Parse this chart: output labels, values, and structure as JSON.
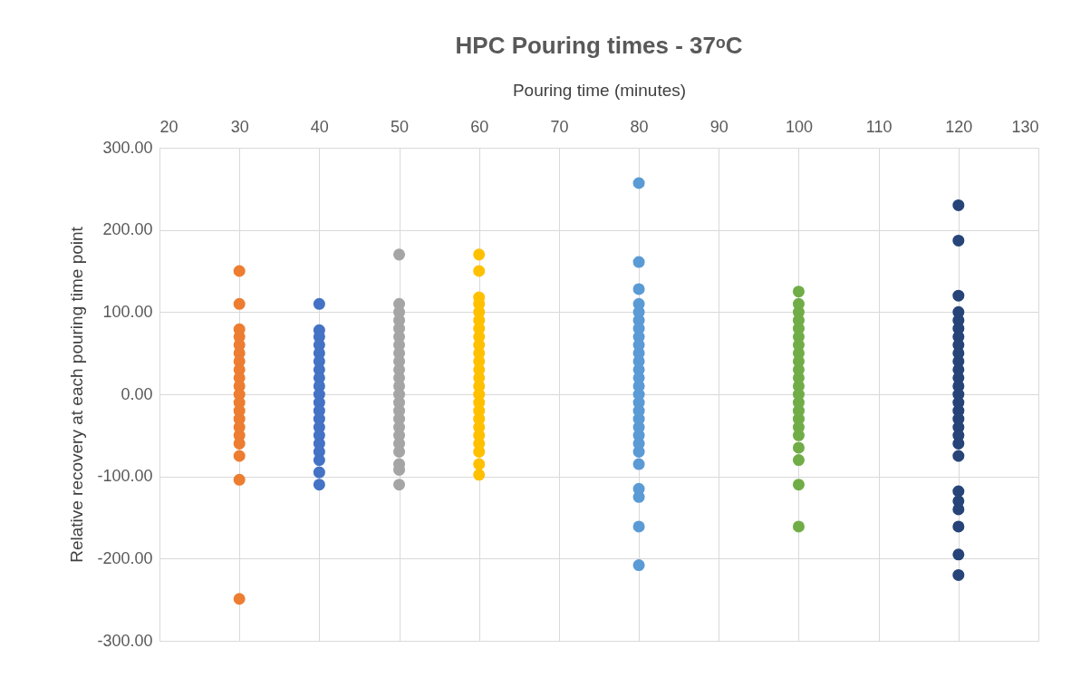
{
  "chart_data": {
    "type": "scatter",
    "title": "HPC Pouring times - 37ᵒC",
    "xlabel": "Pouring time (minutes)",
    "ylabel": "Relative recovery at each pouring time point",
    "xlim": [
      20,
      130
    ],
    "xticks": [
      20,
      30,
      40,
      50,
      60,
      70,
      80,
      90,
      100,
      110,
      120,
      130
    ],
    "ylim": [
      -300,
      300
    ],
    "yticks": [
      {
        "value": -300,
        "label": "-300.00"
      },
      {
        "value": -200,
        "label": "-200.00"
      },
      {
        "value": -100,
        "label": "-100.00"
      },
      {
        "value": 0,
        "label": "0.00"
      },
      {
        "value": 100,
        "label": "100.00"
      },
      {
        "value": 200,
        "label": "200.00"
      },
      {
        "value": 300,
        "label": "300.00"
      }
    ],
    "grid": true,
    "marker": "circle",
    "series": [
      {
        "color": "#ed7d31",
        "x": [
          30,
          30,
          30,
          30,
          30,
          30,
          30,
          30,
          30,
          30,
          30,
          30,
          30,
          30,
          30,
          30,
          30,
          30,
          30,
          30
        ],
        "values": [
          150,
          110,
          79,
          70,
          60,
          50,
          40,
          30,
          20,
          10,
          0,
          -10,
          -20,
          -30,
          -40,
          -50,
          -60,
          -75,
          -104,
          -249
        ]
      },
      {
        "color": "#4472c4",
        "x": [
          40,
          40,
          40,
          40,
          40,
          40,
          40,
          40,
          40,
          40,
          40,
          40,
          40,
          40,
          40,
          40,
          40,
          40,
          40,
          40
        ],
        "values": [
          110,
          78,
          70,
          60,
          50,
          40,
          30,
          20,
          10,
          0,
          -10,
          -20,
          -30,
          -40,
          -50,
          -60,
          -70,
          -80,
          -95,
          -110
        ]
      },
      {
        "color": "#a5a5a5",
        "x": [
          50,
          50,
          50,
          50,
          50,
          50,
          50,
          50,
          50,
          50,
          50,
          50,
          50,
          50,
          50,
          50,
          50,
          50,
          50,
          50,
          50,
          50,
          50
        ],
        "values": [
          170,
          110,
          100,
          90,
          80,
          70,
          60,
          50,
          40,
          30,
          20,
          10,
          0,
          -10,
          -20,
          -30,
          -40,
          -50,
          -60,
          -70,
          -85,
          -92,
          -110
        ]
      },
      {
        "color": "#ffc000",
        "x": [
          60,
          60,
          60,
          60,
          60,
          60,
          60,
          60,
          60,
          60,
          60,
          60,
          60,
          60,
          60,
          60,
          60,
          60,
          60,
          60,
          60,
          60,
          60,
          60
        ],
        "values": [
          170,
          150,
          118,
          110,
          100,
          90,
          80,
          70,
          60,
          50,
          40,
          30,
          20,
          10,
          0,
          -10,
          -20,
          -30,
          -40,
          -50,
          -60,
          -70,
          -85,
          -98
        ]
      },
      {
        "color": "#5b9bd5",
        "x": [
          80,
          80,
          80,
          80,
          80,
          80,
          80,
          80,
          80,
          80,
          80,
          80,
          80,
          80,
          80,
          80,
          80,
          80,
          80,
          80,
          80,
          80,
          80,
          80,
          80,
          80,
          80
        ],
        "values": [
          257,
          161,
          128,
          110,
          100,
          90,
          80,
          70,
          60,
          50,
          40,
          30,
          20,
          10,
          0,
          -10,
          -20,
          -30,
          -40,
          -50,
          -60,
          -70,
          -85,
          -115,
          -125,
          -161,
          -208
        ]
      },
      {
        "color": "#70ad47",
        "x": [
          100,
          100,
          100,
          100,
          100,
          100,
          100,
          100,
          100,
          100,
          100,
          100,
          100,
          100,
          100,
          100,
          100,
          100,
          100,
          100,
          100,
          100
        ],
        "values": [
          125,
          110,
          100,
          90,
          80,
          70,
          60,
          50,
          40,
          30,
          20,
          10,
          0,
          -10,
          -20,
          -30,
          -40,
          -50,
          -65,
          -80,
          -110,
          -161
        ]
      },
      {
        "color": "#264478",
        "x": [
          120,
          120,
          120,
          120,
          120,
          120,
          120,
          120,
          120,
          120,
          120,
          120,
          120,
          120,
          120,
          120,
          120,
          120,
          120,
          120,
          120,
          120,
          120,
          120,
          120,
          120,
          120
        ],
        "values": [
          230,
          187,
          120,
          100,
          90,
          80,
          70,
          60,
          50,
          40,
          30,
          20,
          10,
          0,
          -10,
          -20,
          -30,
          -40,
          -50,
          -60,
          -75,
          -118,
          -130,
          -140,
          -161,
          -195,
          -220
        ]
      }
    ]
  }
}
